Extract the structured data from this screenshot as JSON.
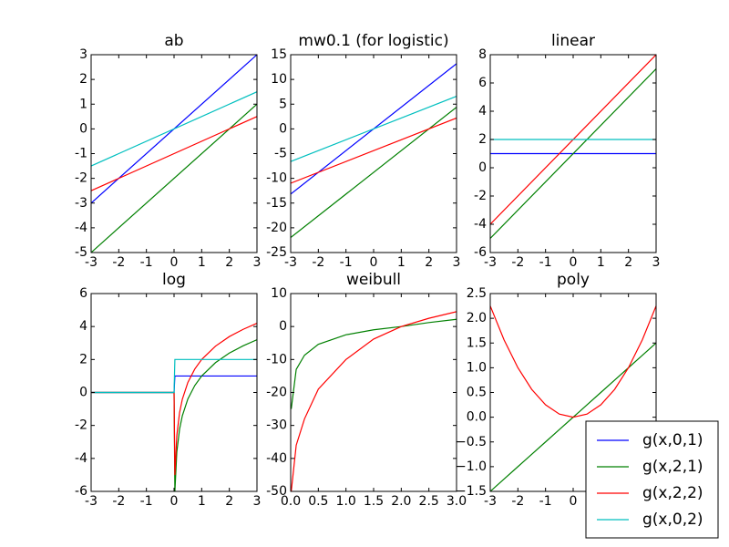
{
  "chart_data": [
    {
      "type": "line",
      "title": "ab",
      "x": [
        -3,
        3
      ],
      "xlim": [
        -3,
        3
      ],
      "xticks": [
        -3,
        -2,
        -1,
        0,
        1,
        2,
        3
      ],
      "ylim": [
        -5,
        3
      ],
      "yticks": [
        -5,
        -4,
        -3,
        -2,
        -1,
        0,
        1,
        2,
        3
      ],
      "series": [
        {
          "color": "#0000ff",
          "values": [
            -3,
            3
          ]
        },
        {
          "color": "#008000",
          "values": [
            -5,
            1
          ]
        },
        {
          "color": "#ff0000",
          "values": [
            -2.5,
            0.5
          ]
        },
        {
          "color": "#00bfbf",
          "values": [
            -1.5,
            1.5
          ]
        }
      ]
    },
    {
      "type": "line",
      "title": "mw0.1 (for logistic)",
      "x": [
        -3,
        3
      ],
      "xlim": [
        -3,
        3
      ],
      "xticks": [
        -3,
        -2,
        -1,
        0,
        1,
        2,
        3
      ],
      "ylim": [
        -25,
        15
      ],
      "yticks": [
        -25,
        -20,
        -15,
        -10,
        -5,
        0,
        5,
        10,
        15
      ],
      "series": [
        {
          "color": "#0000ff",
          "values": [
            -13.18,
            13.18
          ]
        },
        {
          "color": "#008000",
          "values": [
            -21.97,
            4.39
          ]
        },
        {
          "color": "#ff0000",
          "values": [
            -10.99,
            2.2
          ]
        },
        {
          "color": "#00bfbf",
          "values": [
            -6.59,
            6.59
          ]
        }
      ]
    },
    {
      "type": "line",
      "title": "linear",
      "x": [
        -3,
        3
      ],
      "xlim": [
        -3,
        3
      ],
      "xticks": [
        -3,
        -2,
        -1,
        0,
        1,
        2,
        3
      ],
      "ylim": [
        -6,
        8
      ],
      "yticks": [
        -6,
        -4,
        -2,
        0,
        2,
        4,
        6,
        8
      ],
      "series": [
        {
          "color": "#0000ff",
          "values": [
            1,
            1
          ]
        },
        {
          "color": "#008000",
          "values": [
            -5,
            7
          ]
        },
        {
          "color": "#ff0000",
          "values": [
            -4,
            8
          ]
        },
        {
          "color": "#00bfbf",
          "values": [
            2,
            2
          ]
        }
      ]
    },
    {
      "type": "line",
      "title": "log",
      "x": [
        -3,
        -2,
        -1,
        0,
        0.03,
        0.1,
        0.2,
        0.3,
        0.5,
        0.75,
        1,
        1.5,
        2,
        2.5,
        3
      ],
      "xlim": [
        -3,
        3
      ],
      "xticks": [
        -3,
        -2,
        -1,
        0,
        1,
        2,
        3
      ],
      "ylim": [
        -6,
        6
      ],
      "yticks": [
        -6,
        -4,
        -2,
        0,
        2,
        4,
        6
      ],
      "series": [
        {
          "color": "#0000ff",
          "values": [
            0,
            0,
            0,
            0,
            1,
            1,
            1,
            1,
            1,
            1,
            1,
            1,
            1,
            1,
            1
          ]
        },
        {
          "color": "#008000",
          "values": [
            0,
            0,
            0,
            0,
            -6.01,
            -3.61,
            -2.22,
            -1.41,
            -0.39,
            0.42,
            1,
            1.81,
            2.39,
            2.83,
            3.2
          ]
        },
        {
          "color": "#ff0000",
          "values": [
            0,
            0,
            0,
            0,
            -5.01,
            -2.61,
            -1.22,
            -0.41,
            0.61,
            1.42,
            2,
            2.81,
            3.39,
            3.83,
            4.2
          ]
        },
        {
          "color": "#00bfbf",
          "values": [
            0,
            0,
            0,
            0,
            2,
            2,
            2,
            2,
            2,
            2,
            2,
            2,
            2,
            2,
            2
          ]
        }
      ]
    },
    {
      "type": "line",
      "title": "weibull",
      "x": [
        0.01,
        0.1,
        0.25,
        0.5,
        1,
        1.5,
        2,
        2.5,
        3
      ],
      "xlim": [
        0,
        3
      ],
      "xticks": [
        {
          "value": 0,
          "label": "0.0"
        },
        0.5,
        {
          "value": 1,
          "label": "1.0"
        },
        1.5,
        {
          "value": 2,
          "label": "2.0"
        },
        2.5,
        {
          "value": 3,
          "label": "3.0"
        }
      ],
      "ylim": [
        -50,
        10
      ],
      "yticks": [
        -50,
        -40,
        -30,
        -20,
        -10,
        0,
        10
      ],
      "series": [
        {
          "color": "#008000",
          "values": [
            -25,
            -13,
            -8.7,
            -5.4,
            -2.5,
            -1,
            0,
            1.2,
            2.2
          ]
        },
        {
          "color": "#ff0000",
          "values": [
            -50,
            -36,
            -28,
            -19,
            -10,
            -3.8,
            0,
            2.5,
            4.5
          ]
        }
      ]
    },
    {
      "type": "line",
      "title": "poly",
      "x": [
        -3,
        -2.5,
        -2,
        -1.5,
        -1,
        -0.5,
        0,
        0.5,
        1,
        1.5,
        2,
        2.5,
        3
      ],
      "xlim": [
        -3,
        3
      ],
      "xticks": [
        -3,
        -2,
        -1,
        0,
        1,
        2,
        3
      ],
      "ylim": [
        -1.5,
        2.5
      ],
      "yticks": [
        {
          "value": -1.5,
          "label": "−1.5"
        },
        {
          "value": -1,
          "label": "−1.0"
        },
        {
          "value": -0.5,
          "label": "−0.5"
        },
        {
          "value": 0,
          "label": "0.0"
        },
        0.5,
        {
          "value": 1,
          "label": "1.0"
        },
        1.5,
        {
          "value": 2,
          "label": "2.0"
        },
        2.5
      ],
      "series": [
        {
          "color": "#008000",
          "values": [
            -1.5,
            -1.25,
            -1,
            -0.75,
            -0.5,
            -0.25,
            0,
            0.25,
            0.5,
            0.75,
            1,
            1.25,
            1.5
          ]
        },
        {
          "color": "#ff0000",
          "values": [
            2.25,
            1.5625,
            1,
            0.5625,
            0.25,
            0.0625,
            0,
            0.0625,
            0.25,
            0.5625,
            1,
            1.5625,
            2.25
          ]
        }
      ],
      "legend": {
        "loc": "lower right",
        "entries": [
          {
            "name": "g(x,0,1)",
            "color": "#0000ff"
          },
          {
            "name": "g(x,2,1)",
            "color": "#008000"
          },
          {
            "name": "g(x,2,2)",
            "color": "#ff0000"
          },
          {
            "name": "g(x,0,2)",
            "color": "#00bfbf"
          }
        ]
      }
    }
  ]
}
